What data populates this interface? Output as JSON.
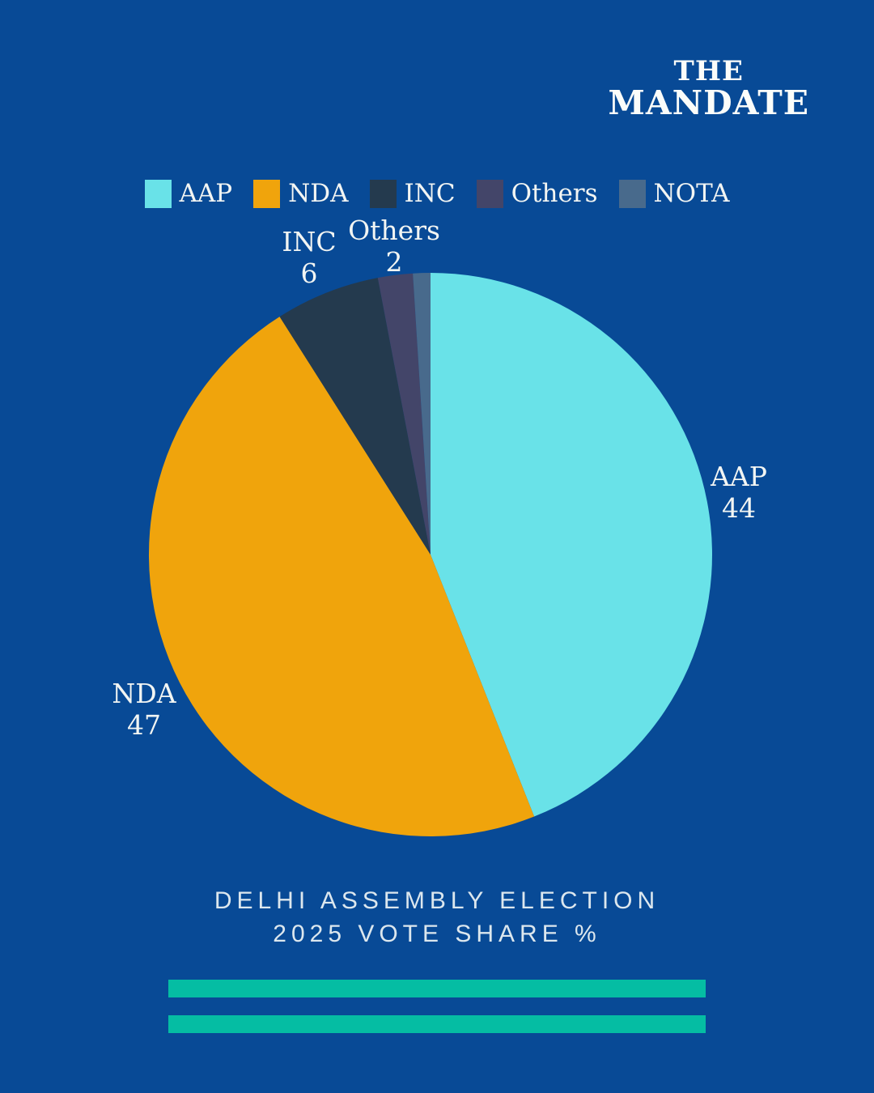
{
  "brand": {
    "line1": "THE",
    "line2": "MANDATE"
  },
  "caption": {
    "line1": "DELHI ASSEMBLY ELECTION",
    "line2": "2025 VOTE SHARE %"
  },
  "colors": {
    "background": "#084A96",
    "accent_bar": "#05BDA3",
    "label_text": "#F2F5F3"
  },
  "chart_data": {
    "type": "pie",
    "title": "Delhi Assembly Election 2025 Vote Share %",
    "start_angle_deg": -90,
    "direction": "clockwise",
    "legend_position": "top",
    "slices": [
      {
        "label": "AAP",
        "value": 44,
        "color": "#69E2E8"
      },
      {
        "label": "NDA",
        "value": 47,
        "color": "#F0A40C"
      },
      {
        "label": "INC",
        "value": 6,
        "color": "#243A4E"
      },
      {
        "label": "Others",
        "value": 2,
        "color": "#434569"
      },
      {
        "label": "NOTA",
        "value": 1,
        "color": "#486A8C"
      }
    ],
    "callouts": [
      {
        "label": "AAP",
        "value": "44"
      },
      {
        "label": "NDA",
        "value": "47"
      },
      {
        "label": "INC",
        "value": "6"
      },
      {
        "label": "Others",
        "value": "2"
      }
    ]
  }
}
